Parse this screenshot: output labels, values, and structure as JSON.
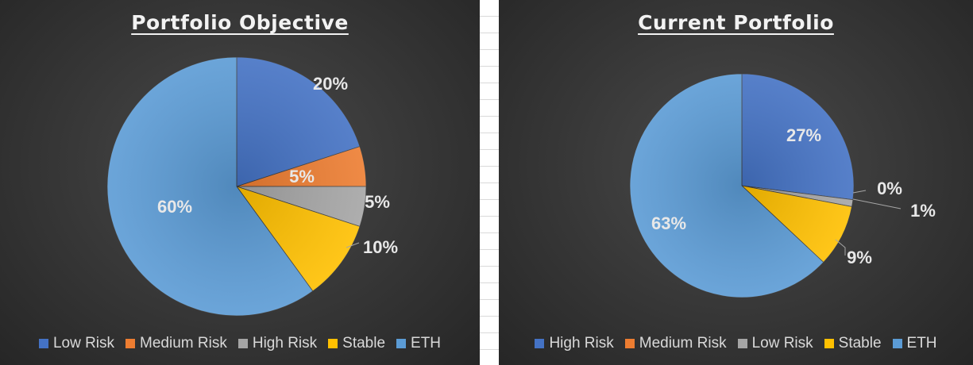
{
  "chart_data": [
    {
      "type": "pie",
      "title": "Portfolio Objective",
      "categories": [
        "Low Risk",
        "Medium Risk",
        "High Risk",
        "Stable",
        "ETH"
      ],
      "values": [
        20,
        5,
        5,
        10,
        60
      ],
      "labels": [
        "20%",
        "5%",
        "5%",
        "10%",
        "60%"
      ],
      "colors": [
        "#4472C4",
        "#ED7D31",
        "#A5A5A5",
        "#FFC000",
        "#5B9BD5"
      ],
      "legend": "bottom"
    },
    {
      "type": "pie",
      "title": "Current Portfolio",
      "categories": [
        "High Risk",
        "Medium Risk",
        "Low Risk",
        "Stable",
        "ETH"
      ],
      "values": [
        27,
        0,
        1,
        9,
        63
      ],
      "labels": [
        "27%",
        "0%",
        "1%",
        "9%",
        "63%"
      ],
      "colors": [
        "#4472C4",
        "#ED7D31",
        "#A5A5A5",
        "#FFC000",
        "#5B9BD5"
      ],
      "legend": "bottom"
    }
  ]
}
